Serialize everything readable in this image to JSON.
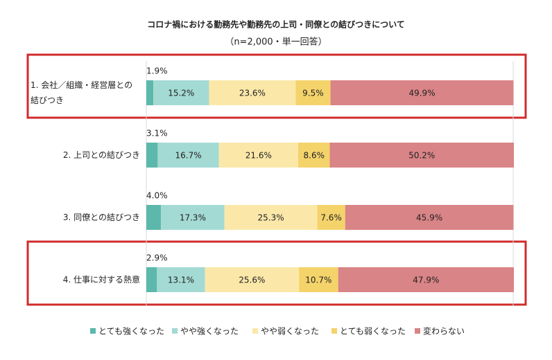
{
  "chart_data": {
    "type": "stacked-bar-horizontal",
    "title": "コロナ禍における勤務先や勤務先の上司・同僚との結びつきについて",
    "subtitle": "（n=2,000・単一回答）",
    "categories": [
      "1. 会社／組織・経営層との結びつき",
      "2. 上司との結びつき",
      "3. 同僚との結びつき",
      "4. 仕事に対する熱意"
    ],
    "xlim": [
      0,
      100
    ],
    "series": [
      {
        "name": "とても強くなった",
        "color": "#5cb8ab",
        "values": [
          1.9,
          3.1,
          4.0,
          2.9
        ],
        "value_labels": [
          "1.9%",
          "3.1%",
          "4.0%",
          "2.9%"
        ]
      },
      {
        "name": "やや強くなった",
        "color": "#a4dad4",
        "values": [
          15.2,
          16.7,
          17.3,
          13.1
        ],
        "value_labels": [
          "15.2%",
          "16.7%",
          "17.3%",
          "13.1%"
        ]
      },
      {
        "name": "やや弱くなった",
        "color": "#fbe8a9",
        "values": [
          23.6,
          21.6,
          25.3,
          25.6
        ],
        "value_labels": [
          "23.6%",
          "21.6%",
          "25.3%",
          "25.6%"
        ]
      },
      {
        "name": "とても弱くなった",
        "color": "#f4d36b",
        "values": [
          9.5,
          8.6,
          7.6,
          10.7
        ],
        "value_labels": [
          "9.5%",
          "8.6%",
          "7.6%",
          "10.7%"
        ]
      },
      {
        "name": "変わらない",
        "color": "#d98486",
        "values": [
          49.9,
          50.2,
          45.9,
          47.9
        ],
        "value_labels": [
          "49.9%",
          "50.2%",
          "45.9%",
          "47.9%"
        ]
      }
    ]
  }
}
